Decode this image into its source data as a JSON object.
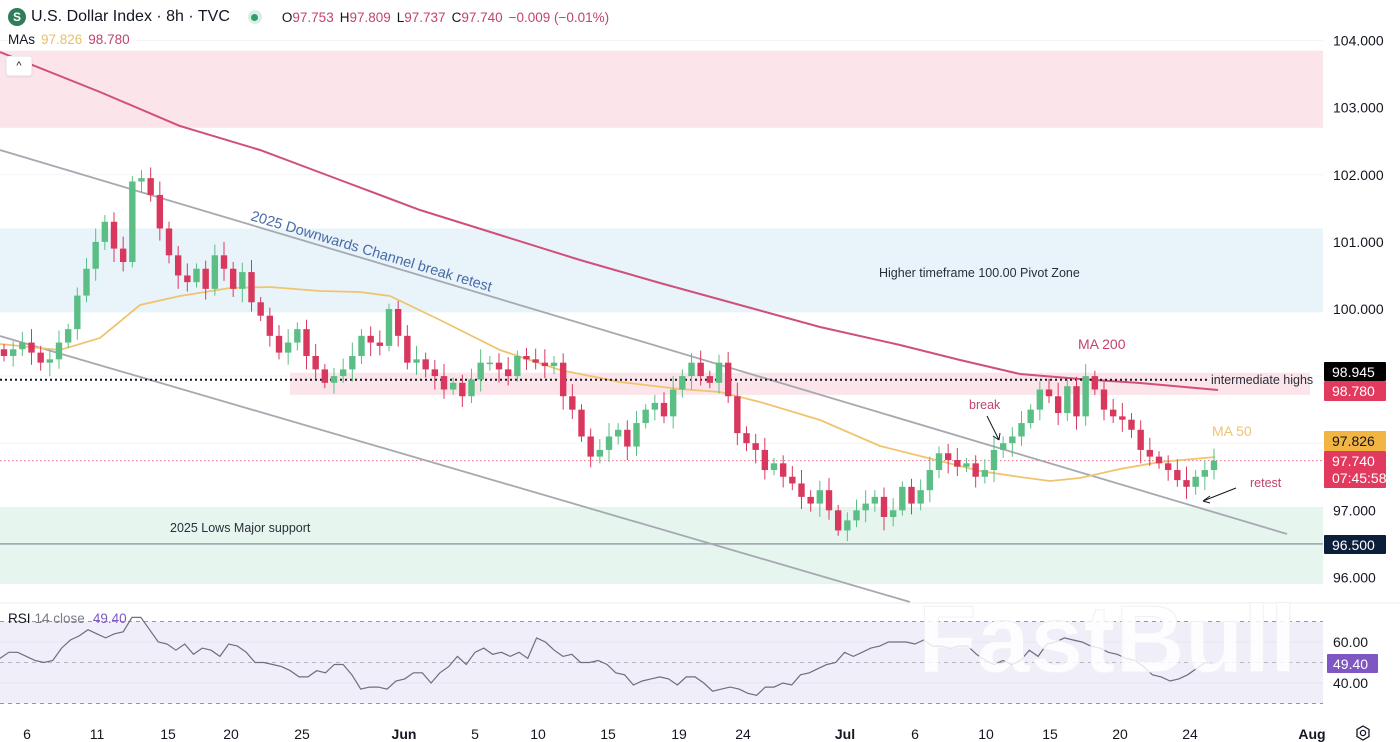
{
  "header": {
    "symbol_badge": "S",
    "title": "U.S. Dollar Index · 8h · TVC",
    "ohlc": [
      {
        "key": "O",
        "value": "97.753"
      },
      {
        "key": "H",
        "value": "97.809"
      },
      {
        "key": "L",
        "value": "97.737"
      },
      {
        "key": "C",
        "value": "97.740"
      }
    ],
    "change": "−0.009 (−0.01%)"
  },
  "mas_legend": {
    "label": "MAs",
    "ma50": "97.826",
    "ma200": "98.780"
  },
  "collapse_button": "^",
  "rsi_legend": {
    "label": "RSI",
    "params": "14 close",
    "value": "49.40"
  },
  "colors": {
    "up": "#5bbf85",
    "down": "#d9385e",
    "ma50": "#f0c46e",
    "ma200": "#d0507a",
    "channel": "#a6a9b0",
    "resistance_zone": "#fbe4ea",
    "pivot_zone": "#e8f4fa",
    "support_zone": "#e6f6ef",
    "rsi_line": "#6b6f80",
    "rsi_band": "#f0eef8",
    "annotation_pink": "#c2436d",
    "annotation_blue": "#4a6aa8",
    "ma50_label": "#f0c46e"
  },
  "chart_data": {
    "type": "candlestick",
    "title": "U.S. Dollar Index · 8h · TVC",
    "price_axis": {
      "ticks": [
        "104.000",
        "103.000",
        "102.000",
        "101.000",
        "100.000",
        "97.000",
        "96.000"
      ],
      "ylim": [
        95.6,
        104.2
      ]
    },
    "x_axis": {
      "ticks": [
        "6",
        "11",
        "15",
        "20",
        "25",
        "Jun",
        "5",
        "10",
        "15",
        "19",
        "24",
        "Jul",
        "6",
        "10",
        "15",
        "20",
        "24",
        "Aug"
      ]
    },
    "price_labels": [
      {
        "value": "98.945",
        "bg": "#000000",
        "fg": "#ffffff",
        "name": "intermediate-highs-label"
      },
      {
        "value": "98.780",
        "bg": "#e23a5f",
        "fg": "#ffffff",
        "name": "ma200-value-label"
      },
      {
        "value": "97.826",
        "bg": "#f2b442",
        "fg": "#131722",
        "name": "ma50-value-label"
      },
      {
        "value": "97.740",
        "sub": "07:45:58",
        "bg": "#e23a5f",
        "fg": "#ffffff",
        "name": "last-price-label"
      },
      {
        "value": "96.500",
        "bg": "#0d1e3a",
        "fg": "#ffffff",
        "name": "support-line-label"
      }
    ],
    "zones": [
      {
        "name": "upper-resistance-zone",
        "from": 102.7,
        "to": 103.85
      },
      {
        "name": "higher-timeframe-pivot-zone",
        "from": 99.95,
        "to": 101.2,
        "label": "Higher timeframe 100.00 Pivot Zone"
      },
      {
        "name": "intermediate-highs-zone",
        "from": 98.72,
        "to": 99.05
      },
      {
        "name": "2025-lows-major-support-zone",
        "from": 95.9,
        "to": 97.05,
        "label": "2025 Lows Major support"
      }
    ],
    "horizontal_lines": [
      {
        "name": "intermediate-highs-line",
        "value": 98.945,
        "style": "dotted",
        "label": "intermediate highs"
      },
      {
        "name": "major-support-line",
        "value": 96.5,
        "style": "solid"
      },
      {
        "name": "last-price-line",
        "value": 97.74,
        "style": "dotted"
      }
    ],
    "annotations": [
      {
        "text": "2025 Downwards Channel break retest",
        "name": "channel-label"
      },
      {
        "text": "MA 200",
        "name": "ma200-label"
      },
      {
        "text": "MA 50",
        "name": "ma50-label"
      },
      {
        "text": "break",
        "name": "break-label"
      },
      {
        "text": "retest",
        "name": "retest-label"
      }
    ],
    "series": [
      {
        "name": "MA 50",
        "last": 97.826
      },
      {
        "name": "MA 200",
        "last": 98.78
      }
    ],
    "ohlc_last": {
      "open": 97.753,
      "high": 97.809,
      "low": 97.737,
      "close": 97.74
    },
    "candles_close_approx": [
      99.3,
      99.4,
      99.5,
      99.35,
      99.2,
      99.25,
      99.5,
      99.7,
      100.2,
      100.6,
      101.0,
      101.3,
      100.9,
      100.7,
      101.9,
      101.95,
      101.7,
      101.2,
      100.8,
      100.5,
      100.4,
      100.6,
      100.3,
      100.8,
      100.6,
      100.3,
      100.55,
      100.1,
      99.9,
      99.6,
      99.35,
      99.5,
      99.7,
      99.3,
      99.1,
      98.9,
      99.0,
      99.1,
      99.3,
      99.6,
      99.5,
      99.45,
      100.0,
      99.6,
      99.2,
      99.25,
      99.1,
      99.0,
      98.8,
      98.9,
      98.7,
      98.95,
      99.2,
      99.2,
      99.1,
      99.0,
      99.3,
      99.25,
      99.2,
      99.15,
      99.2,
      98.7,
      98.5,
      98.1,
      97.8,
      97.9,
      98.1,
      98.2,
      97.95,
      98.3,
      98.5,
      98.6,
      98.4,
      98.8,
      99.0,
      99.2,
      99.0,
      98.9,
      99.2,
      98.7,
      98.15,
      98.0,
      97.9,
      97.6,
      97.7,
      97.5,
      97.4,
      97.2,
      97.1,
      97.3,
      97.0,
      96.7,
      96.85,
      97.0,
      97.1,
      97.2,
      96.9,
      97.0,
      97.35,
      97.1,
      97.3,
      97.6,
      97.85,
      97.75,
      97.65,
      97.7,
      97.5,
      97.6,
      97.9,
      98.0,
      98.1,
      98.3,
      98.5,
      98.8,
      98.7,
      98.45,
      98.85,
      98.4,
      99.0,
      98.8,
      98.5,
      98.4,
      98.35,
      98.2,
      97.9,
      97.8,
      97.7,
      97.6,
      97.45,
      97.35,
      97.5,
      97.6,
      97.74
    ],
    "rsi": {
      "levels": [
        "60.00",
        "40.00"
      ],
      "value_label": "49.40",
      "bands": [
        30,
        70
      ],
      "values_approx": [
        52,
        55,
        55,
        53,
        51,
        50,
        51,
        57,
        61,
        63,
        66,
        64,
        62,
        64,
        65,
        72,
        72,
        66,
        60,
        59,
        56,
        59,
        54,
        57,
        56,
        53,
        59,
        58,
        55,
        50,
        50,
        49,
        48,
        46,
        43,
        43,
        46,
        45,
        49,
        49,
        44,
        37,
        38,
        38,
        37,
        41,
        42,
        45,
        45,
        40,
        45,
        48,
        53,
        49,
        55,
        57,
        54,
        55,
        53,
        55,
        52,
        62,
        60,
        56,
        53,
        54,
        50,
        50,
        51,
        49,
        45,
        44,
        39,
        41,
        42,
        43,
        42,
        39,
        43,
        43,
        40,
        36,
        37,
        38,
        37,
        35,
        34,
        38,
        38,
        40,
        39,
        44,
        45,
        47,
        49,
        50,
        55,
        53,
        55,
        57,
        58,
        60,
        60,
        60,
        59,
        61,
        58,
        58,
        57,
        58,
        58,
        54,
        51,
        49,
        51,
        49,
        51,
        56,
        53,
        59,
        60,
        62,
        61,
        60,
        58,
        57,
        55,
        54,
        52,
        51,
        48,
        44,
        43,
        41,
        42,
        44,
        47,
        50,
        49.4
      ]
    }
  }
}
